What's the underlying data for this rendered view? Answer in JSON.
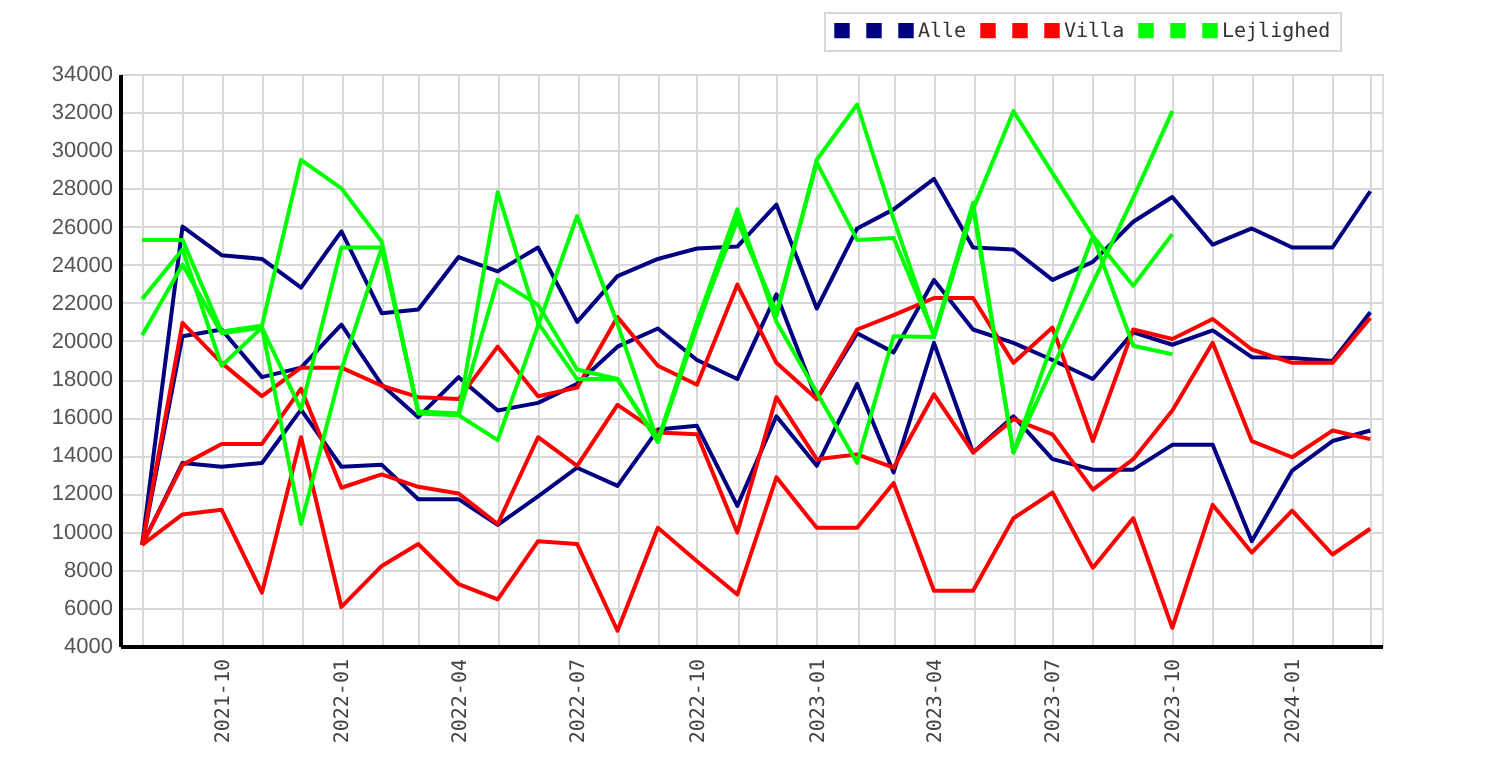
{
  "chart_data": {
    "type": "line",
    "x": [
      "2021-08",
      "2021-09",
      "2021-10",
      "2021-11",
      "2021-12",
      "2022-01",
      "2022-02",
      "2022-03",
      "2022-04",
      "2022-05",
      "2022-06",
      "2022-07",
      "2022-08",
      "2022-09",
      "2022-10",
      "2022-11",
      "2022-12",
      "2023-01",
      "2023-02",
      "2023-03",
      "2023-04",
      "2023-05",
      "2023-06",
      "2023-07",
      "2023-08",
      "2023-09",
      "2023-10",
      "2023-11",
      "2023-12",
      "2024-01",
      "2024-02",
      "2024-03"
    ],
    "series": [
      {
        "color": "#000080",
        "values": [
          9300,
          26000,
          24500,
          24300,
          22800,
          25750,
          21450,
          21650,
          24400,
          23650,
          24900,
          21000,
          23400,
          24300,
          24850,
          24950,
          27150,
          21700,
          25900,
          26900,
          28500,
          24900,
          24800,
          23200,
          24150,
          26250,
          27550,
          25050,
          25900,
          24900,
          24900,
          27850
        ]
      },
      {
        "color": "#000080",
        "values": [
          9300,
          20250,
          20600,
          18100,
          18600,
          20850,
          17700,
          16000,
          18100,
          16350,
          16750,
          17750,
          19700,
          20650,
          19000,
          18000,
          22450,
          16950,
          20400,
          19400,
          23200,
          20600,
          19900,
          19000,
          18000,
          20450,
          19800,
          20550,
          19150,
          19100,
          18950,
          21500
        ]
      },
      {
        "name": "Alle",
        "color": "#000080",
        "values": [
          9300,
          13600,
          13400,
          13600,
          16400,
          13400,
          13500,
          11700,
          11700,
          10350,
          11850,
          13350,
          12400,
          15350,
          15550,
          11350,
          16050,
          13450,
          17750,
          13100,
          19900,
          14150,
          16050,
          13800,
          13250,
          13250,
          14550,
          14550,
          9500,
          13200,
          14750,
          15300
        ]
      },
      {
        "color": "#ff0000",
        "values": [
          9300,
          20950,
          18850,
          17100,
          18600,
          18600,
          17650,
          17050,
          16950,
          19700,
          17100,
          17550,
          21250,
          18700,
          17700,
          22950,
          18850,
          16950,
          20600,
          21350,
          22250,
          22250,
          18850,
          20700,
          14750,
          20600,
          20100,
          21150,
          19550,
          18850,
          18850,
          21200
        ]
      },
      {
        "color": "#ff0000",
        "values": [
          9300,
          13500,
          14600,
          14600,
          17500,
          12300,
          13000,
          12350,
          12000,
          10400,
          14950,
          13450,
          16650,
          15200,
          15100,
          9950,
          17050,
          13800,
          14050,
          13350,
          17200,
          14150,
          15900,
          15100,
          12200,
          13800,
          16350,
          19900,
          14750,
          13900,
          15300,
          14850
        ]
      },
      {
        "name": "Villa",
        "color": "#ff0000",
        "values": [
          9300,
          10900,
          11150,
          6800,
          14950,
          6050,
          8200,
          9350,
          7250,
          6450,
          9500,
          9350,
          4800,
          10200,
          8450,
          6700,
          12850,
          10200,
          10200,
          12550,
          6900,
          6900,
          10700,
          12050,
          8100,
          10700,
          4950,
          11400,
          8900,
          11100,
          8800,
          10150
        ]
      },
      {
        "color": "#00ff00",
        "x": [
          "2021-08",
          "2021-09",
          "2021-10",
          "2021-11",
          "2021-12",
          "2022-01",
          "2022-02",
          "2022-03",
          "2022-04",
          "2022-05",
          "2022-06",
          "2022-07",
          "2022-08",
          "2022-09",
          "2022-10",
          "2022-11",
          "2022-12",
          "2023-01",
          "2023-02",
          "2023-03",
          "2023-04",
          "2023-05",
          "2023-06",
          "2023-07",
          "2023-08",
          "2023-09",
          "2023-10"
        ],
        "values": [
          25300,
          25300,
          20500,
          20800,
          29500,
          28000,
          25200,
          16200,
          16100,
          14800,
          20800,
          26550,
          20900,
          14700,
          20700,
          26650,
          21300,
          29500,
          32400,
          26400,
          20250,
          26900,
          32050,
          28800,
          25500,
          19750,
          19300
        ]
      },
      {
        "color": "#00ff00",
        "x": [
          "2021-08",
          "2021-09",
          "2021-10",
          "2021-11",
          "2021-12",
          "2022-01",
          "2022-02",
          "2022-03",
          "2022-04",
          "2022-05",
          "2022-06",
          "2022-07",
          "2022-08",
          "2022-09",
          "2022-10",
          "2022-11",
          "2022-12",
          "2023-01",
          "2023-02",
          "2023-03",
          "2023-04",
          "2023-05",
          "2023-06",
          "2023-07",
          "2023-08",
          "2023-09",
          "2023-10"
        ],
        "values": [
          22200,
          24800,
          18700,
          20700,
          10400,
          18500,
          24900,
          16300,
          16200,
          27800,
          20950,
          18000,
          18000,
          14700,
          20900,
          26300,
          21500,
          29350,
          25300,
          25400,
          20300,
          27250,
          14150,
          18600,
          23050,
          27500,
          32050
        ]
      },
      {
        "name": "Lejlighed",
        "color": "#00ff00",
        "x": [
          "2021-08",
          "2021-09",
          "2021-10",
          "2021-11",
          "2021-12",
          "2022-01",
          "2022-02",
          "2022-03",
          "2022-04",
          "2022-05",
          "2022-06",
          "2022-07",
          "2022-08",
          "2022-09",
          "2022-10",
          "2022-11",
          "2022-12",
          "2023-01",
          "2023-02",
          "2023-03",
          "2023-04",
          "2023-05",
          "2023-06",
          "2023-07",
          "2023-08",
          "2023-09",
          "2023-10"
        ],
        "values": [
          20300,
          24000,
          20400,
          20700,
          16400,
          24900,
          24900,
          16300,
          16100,
          23200,
          21900,
          18500,
          18000,
          14800,
          21000,
          26900,
          21000,
          17300,
          13600,
          20250,
          20200,
          27000,
          14150,
          19900,
          25500,
          22900,
          25600
        ]
      }
    ],
    "xlim": [
      "2021-07-15",
      "2024-03-10"
    ],
    "xticks": [
      {
        "value": "2021-08",
        "label": null
      },
      {
        "value": "2021-09",
        "label": null
      },
      "2021-10",
      {
        "value": "2021-11",
        "label": null
      },
      {
        "value": "2021-12",
        "label": null
      },
      "2022-01",
      {
        "value": "2022-02",
        "label": null
      },
      {
        "value": "2022-03",
        "label": null
      },
      "2022-04",
      {
        "value": "2022-05",
        "label": null
      },
      {
        "value": "2022-06",
        "label": null
      },
      "2022-07",
      {
        "value": "2022-08",
        "label": null
      },
      {
        "value": "2022-09",
        "label": null
      },
      "2022-10",
      {
        "value": "2022-11",
        "label": null
      },
      {
        "value": "2022-12",
        "label": null
      },
      "2023-01",
      {
        "value": "2023-02",
        "label": null
      },
      {
        "value": "2023-03",
        "label": null
      },
      "2023-04",
      {
        "value": "2023-05",
        "label": null
      },
      {
        "value": "2023-06",
        "label": null
      },
      "2023-07",
      {
        "value": "2023-08",
        "label": null
      },
      {
        "value": "2023-09",
        "label": null
      },
      "2023-10",
      {
        "value": "2023-11",
        "label": null
      },
      {
        "value": "2023-12",
        "label": null
      },
      "2024-01",
      {
        "value": "2024-02",
        "label": null
      },
      {
        "value": "2024-03",
        "label": null
      }
    ],
    "ylim": [
      4000,
      34000
    ],
    "yticks": [
      4000,
      6000,
      8000,
      10000,
      12000,
      14000,
      16000,
      18000,
      20000,
      22000,
      24000,
      26000,
      28000,
      30000,
      32000,
      34000
    ],
    "grid": true,
    "legend": "top right"
  }
}
